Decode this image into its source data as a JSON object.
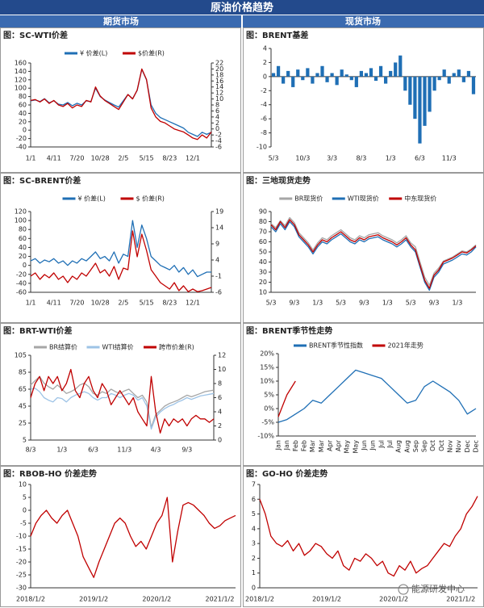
{
  "header": {
    "title": "原油价格趋势",
    "left": "期货市场",
    "right": "现货市场"
  },
  "watermark": "能源研发中心",
  "chart_data": [
    {
      "type": "line",
      "title": "图：SC-WTI价差",
      "legend": "top",
      "categories": [
        "1/1",
        null,
        null,
        null,
        null,
        "4/11",
        null,
        null,
        null,
        null,
        "7/20",
        null,
        null,
        null,
        null,
        "10/28",
        null,
        null,
        null,
        null,
        "2/5",
        null,
        null,
        null,
        null,
        "5/15",
        null,
        null,
        null,
        null,
        "8/23",
        null,
        null,
        null,
        null,
        "12/1",
        null,
        null,
        null,
        null
      ],
      "ylim": [
        -40,
        160
      ],
      "yticks": [
        -40,
        -20,
        0,
        20,
        40,
        60,
        80,
        100,
        120,
        140,
        160
      ],
      "y2lim": [
        -6,
        22
      ],
      "y2ticks": [
        -6,
        -4,
        -2,
        0,
        2,
        4,
        6,
        8,
        10,
        12,
        14,
        16,
        18,
        20,
        22
      ],
      "series": [
        {
          "name": "¥ 价差(L)",
          "color": "#1f6fb5",
          "values": [
            70,
            72,
            68,
            75,
            65,
            70,
            62,
            60,
            66,
            58,
            64,
            60,
            70,
            68,
            100,
            80,
            72,
            66,
            60,
            55,
            70,
            85,
            75,
            95,
            145,
            120,
            60,
            40,
            30,
            25,
            20,
            15,
            10,
            5,
            -5,
            -10,
            -15,
            -5,
            -10,
            -5
          ]
        },
        {
          "name": "$价差(R)",
          "color": "#c00000",
          "axis": "y2",
          "values": [
            9.5,
            9.8,
            9,
            10,
            8.5,
            9.5,
            8,
            7.5,
            8.5,
            7,
            8,
            7.5,
            9.5,
            9,
            14,
            11,
            9.5,
            8.5,
            7.5,
            6.5,
            9,
            11.5,
            10,
            13,
            20,
            16.5,
            7,
            4,
            2.5,
            2,
            1,
            0,
            -0.5,
            -1,
            -2,
            -3,
            -3.5,
            -2,
            -3,
            -1
          ]
        }
      ]
    },
    {
      "type": "bar",
      "title": "图：BRENT基差",
      "color": "#1f6fb5",
      "categories": [
        "5/3",
        null,
        null,
        null,
        null,
        null,
        "10/3",
        null,
        null,
        null,
        null,
        null,
        "3/3",
        null,
        null,
        null,
        null,
        null,
        "8/3",
        null,
        null,
        null,
        null,
        null,
        "1/3",
        null,
        null,
        null,
        null,
        null,
        "6/3",
        null,
        null,
        null,
        null,
        null,
        "11/3",
        null,
        null,
        null,
        null,
        null
      ],
      "ylim": [
        -10,
        4
      ],
      "yticks": [
        -10,
        -8,
        -6,
        -4,
        -2,
        0,
        2,
        4
      ],
      "values": [
        0.5,
        1.5,
        -1,
        0.8,
        -1.5,
        1,
        -0.5,
        1.2,
        -1,
        0.5,
        1.5,
        -0.8,
        0.5,
        -1.2,
        1,
        0.3,
        -0.5,
        -1.5,
        0.8,
        0.5,
        1.2,
        -0.6,
        1.5,
        -1,
        0.8,
        2,
        3,
        -2,
        -4,
        -6,
        -9.5,
        -7,
        -5,
        -2,
        -0.5,
        1,
        -1,
        0.5,
        1,
        -0.8,
        0.8,
        -2.5
      ]
    },
    {
      "type": "line",
      "title": "图：SC-BRENT价差",
      "legend": "top",
      "categories": [
        "1/1",
        null,
        null,
        null,
        null,
        "4/11",
        null,
        null,
        null,
        null,
        "7/20",
        null,
        null,
        null,
        null,
        "10/28",
        null,
        null,
        null,
        null,
        "2/5",
        null,
        null,
        null,
        null,
        "5/15",
        null,
        null,
        null,
        null,
        "8/23",
        null,
        null,
        null,
        null,
        "12/1",
        null,
        null,
        null,
        null
      ],
      "ylim": [
        -60,
        120
      ],
      "yticks": [
        -60,
        -40,
        -20,
        0,
        20,
        40,
        60,
        80,
        100,
        120
      ],
      "y2lim": [
        -6,
        19
      ],
      "y2ticks": [
        -6,
        -1,
        4,
        9,
        14,
        19
      ],
      "series": [
        {
          "name": "¥ 价差(L)",
          "color": "#1f6fb5",
          "values": [
            10,
            15,
            5,
            12,
            8,
            15,
            5,
            10,
            0,
            10,
            5,
            15,
            10,
            20,
            30,
            15,
            20,
            10,
            30,
            5,
            25,
            20,
            100,
            40,
            90,
            60,
            20,
            10,
            0,
            -5,
            -10,
            0,
            -15,
            -5,
            -20,
            -10,
            -25,
            -20,
            -15,
            -15
          ]
        },
        {
          "name": "$ 价差(R)",
          "color": "#c00000",
          "axis": "y2",
          "values": [
            -1,
            0,
            -2,
            -0.5,
            -1.5,
            0,
            -2,
            -1,
            -3,
            -1,
            -2,
            0,
            -1,
            1,
            3,
            0,
            1,
            -1,
            2,
            -2,
            1.5,
            1,
            13,
            5,
            12,
            7,
            1,
            -1,
            -3,
            -4,
            -5,
            -3,
            -5.5,
            -4,
            -5.8,
            -5,
            -5.8,
            -5.5,
            -5,
            -4.5
          ]
        }
      ]
    },
    {
      "type": "line",
      "title": "图：三地现货走势",
      "legend": "top",
      "categories": [
        "5/3",
        null,
        null,
        null,
        null,
        "9/3",
        null,
        null,
        null,
        null,
        "1/3",
        null,
        null,
        null,
        null,
        "5/3",
        null,
        null,
        null,
        null,
        "9/3",
        null,
        null,
        null,
        null,
        "1/3",
        null,
        null,
        null,
        null,
        "5/3",
        null,
        null,
        null,
        null,
        "9/3",
        null,
        null,
        null,
        null,
        "1/3",
        null,
        null,
        null,
        null
      ],
      "ylim": [
        10,
        90
      ],
      "yticks": [
        10,
        20,
        30,
        40,
        50,
        60,
        70,
        80,
        90
      ],
      "series": [
        {
          "name": "BR现货价",
          "color": "#a6a6a6",
          "values": [
            78,
            74,
            81,
            76,
            84,
            79,
            69,
            64,
            59,
            52,
            59,
            64,
            62,
            66,
            69,
            72,
            68,
            64,
            62,
            66,
            64,
            67,
            68,
            69,
            66,
            64,
            62,
            59,
            62,
            66,
            59,
            55,
            40,
            25,
            17,
            29,
            34,
            41,
            43,
            45,
            48,
            51,
            50,
            53,
            57
          ]
        },
        {
          "name": "WTI现货价",
          "color": "#1f6fb5",
          "values": [
            75,
            70,
            78,
            72,
            80,
            75,
            65,
            60,
            55,
            48,
            55,
            60,
            58,
            62,
            65,
            68,
            64,
            60,
            58,
            62,
            60,
            63,
            64,
            65,
            62,
            60,
            58,
            55,
            58,
            62,
            55,
            50,
            35,
            20,
            12,
            25,
            30,
            38,
            40,
            42,
            45,
            48,
            47,
            50,
            55
          ]
        },
        {
          "name": "中东现货价",
          "color": "#c00000",
          "values": [
            77,
            72,
            80,
            74,
            82,
            77,
            67,
            62,
            57,
            50,
            57,
            62,
            60,
            64,
            67,
            70,
            66,
            62,
            60,
            64,
            62,
            65,
            66,
            67,
            64,
            62,
            60,
            57,
            60,
            64,
            57,
            52,
            37,
            22,
            14,
            27,
            32,
            40,
            42,
            44,
            47,
            50,
            49,
            52,
            56
          ]
        }
      ]
    },
    {
      "type": "line",
      "title": "图：BRT-WTI价差",
      "legend": "top",
      "categories": [
        "8/3",
        null,
        null,
        null,
        null,
        null,
        null,
        "1/3",
        null,
        null,
        null,
        null,
        null,
        null,
        "6/3",
        null,
        null,
        null,
        null,
        null,
        null,
        "11/3",
        null,
        null,
        null,
        null,
        null,
        null,
        "4/3",
        null,
        null,
        null,
        null,
        null,
        null,
        "9/3",
        null,
        null,
        null,
        null,
        null,
        null
      ],
      "ylim": [
        5,
        105
      ],
      "yticks": [
        5,
        25,
        45,
        65,
        85,
        105
      ],
      "y2lim": [
        0,
        12
      ],
      "y2ticks": [
        0,
        2,
        4,
        6,
        8,
        10,
        12
      ],
      "series": [
        {
          "name": "BR结算价",
          "color": "#a6a6a6",
          "values": [
            70,
            75,
            80,
            72,
            68,
            65,
            70,
            65,
            60,
            62,
            65,
            70,
            72,
            68,
            60,
            58,
            62,
            60,
            65,
            62,
            60,
            63,
            65,
            60,
            55,
            58,
            50,
            20,
            35,
            40,
            45,
            48,
            50,
            52,
            55,
            58,
            56,
            58,
            60,
            62,
            63,
            64
          ]
        },
        {
          "name": "WTI结算价",
          "color": "#9dc3e6",
          "values": [
            65,
            66,
            62,
            55,
            52,
            50,
            55,
            54,
            50,
            55,
            58,
            60,
            62,
            60,
            55,
            52,
            55,
            55,
            60,
            58,
            55,
            58,
            60,
            58,
            52,
            55,
            45,
            18,
            32,
            38,
            42,
            45,
            47,
            50,
            52,
            55,
            53,
            55,
            57,
            58,
            59,
            60
          ]
        },
        {
          "name": "跨市价差(R)",
          "color": "#c00000",
          "axis": "y2",
          "values": [
            6,
            8,
            9,
            7,
            9,
            8,
            9,
            7,
            8,
            10,
            7,
            6,
            8,
            9,
            7,
            6,
            8,
            7,
            5,
            6,
            7,
            6,
            5,
            6,
            4,
            3,
            2,
            9,
            4,
            1,
            3,
            2,
            3,
            2.5,
            3,
            2,
            3,
            3.5,
            3,
            3,
            2.5,
            3
          ]
        }
      ]
    },
    {
      "type": "line",
      "title": "图：BRENT季节性走势",
      "legend": "top",
      "categories": [
        "Jan",
        "Jan",
        "Feb",
        "Feb",
        "Mar",
        "Mar",
        "Apr",
        "Apr",
        "May",
        "May",
        "Jun",
        "Jun",
        "Jul",
        "Jul",
        "Aug",
        "Aug",
        "Sep",
        "Sep",
        "Oct",
        "Oct",
        "Nov",
        "Nov",
        "Dec",
        "Dec"
      ],
      "ylim": [
        -10,
        20
      ],
      "yticks": [
        {
          "value": -10,
          "label": "-10%"
        },
        {
          "value": -5,
          "label": "-5%"
        },
        {
          "value": 0,
          "label": "0%"
        },
        {
          "value": 5,
          "label": "5%"
        },
        {
          "value": 10,
          "label": "10%"
        },
        {
          "value": 15,
          "label": "15%"
        },
        {
          "value": 20,
          "label": "20%"
        }
      ],
      "series": [
        {
          "name": "BRENT季节性指数",
          "color": "#1f6fb5",
          "values": [
            -5,
            -4,
            -2,
            0,
            3,
            2,
            5,
            8,
            11,
            14,
            13,
            12,
            11,
            8,
            5,
            2,
            3,
            8,
            10,
            8,
            6,
            3,
            -2,
            0
          ]
        },
        {
          "name": "2021年走势",
          "color": "#c00000",
          "values": [
            -3,
            5,
            10,
            null,
            null,
            null,
            null,
            null,
            null,
            null,
            null,
            null,
            null,
            null,
            null,
            null,
            null,
            null,
            null,
            null,
            null,
            null,
            null,
            null
          ]
        }
      ]
    },
    {
      "type": "line",
      "title": "图：RBOB-HO 价差走势",
      "color": "#c00000",
      "categories": [
        "2018/1/2",
        null,
        null,
        null,
        null,
        null,
        null,
        null,
        null,
        null,
        null,
        null,
        "2019/1/2",
        null,
        null,
        null,
        null,
        null,
        null,
        null,
        null,
        null,
        null,
        null,
        "2020/1/2",
        null,
        null,
        null,
        null,
        null,
        null,
        null,
        null,
        null,
        null,
        null,
        "2021/1/2",
        null,
        null,
        null
      ],
      "ylim": [
        -30,
        10
      ],
      "yticks": [
        -30,
        -25,
        -20,
        -15,
        -10,
        -5,
        0,
        5,
        10
      ],
      "values": [
        -10,
        -5,
        -2,
        0,
        -3,
        -5,
        -2,
        0,
        -5,
        -10,
        -18,
        -22,
        -26,
        -20,
        -15,
        -10,
        -5,
        -3,
        -5,
        -10,
        -14,
        -12,
        -15,
        -10,
        -5,
        -2,
        5,
        -20,
        -8,
        2,
        3,
        2,
        0,
        -2,
        -5,
        -7,
        -6,
        -4,
        -3,
        -2
      ]
    },
    {
      "type": "line",
      "title": "图：GO-HO 价差走势",
      "color": "#c00000",
      "categories": [
        "2018/1/2",
        null,
        null,
        null,
        null,
        null,
        null,
        null,
        null,
        null,
        null,
        null,
        "2019/1/2",
        null,
        null,
        null,
        null,
        null,
        null,
        null,
        null,
        null,
        null,
        null,
        "2020/1/2",
        null,
        null,
        null,
        null,
        null,
        null,
        null,
        null,
        null,
        null,
        null,
        "2021/1/2",
        null,
        null,
        null
      ],
      "ylim": [
        0,
        7
      ],
      "yticks": [
        0,
        1,
        2,
        3,
        4,
        5,
        6,
        7
      ],
      "values": [
        6,
        5,
        3.5,
        3,
        2.8,
        3.2,
        2.5,
        3,
        2.2,
        2.5,
        3,
        2.8,
        2.3,
        2,
        2.5,
        1.5,
        1.2,
        2,
        1.8,
        2.3,
        2,
        1.5,
        1.8,
        1,
        0.8,
        1.5,
        1.2,
        1.8,
        1,
        1.3,
        1.5,
        2,
        2.5,
        3,
        2.8,
        3.5,
        4,
        5,
        5.5,
        6.2
      ]
    }
  ]
}
